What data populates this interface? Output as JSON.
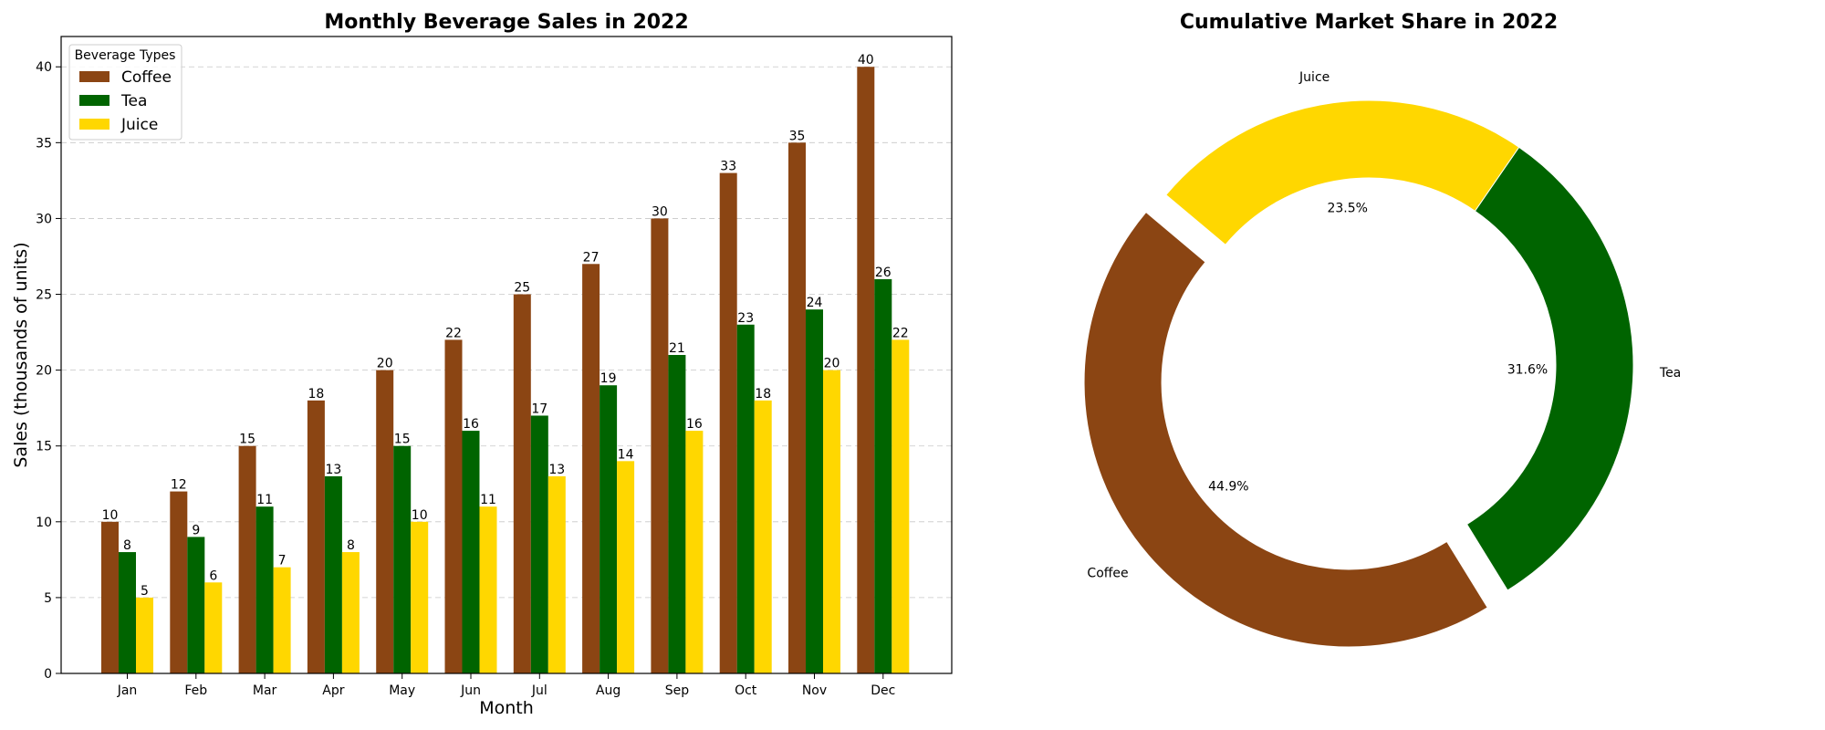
{
  "chart_data": [
    {
      "type": "bar",
      "title": "Monthly Beverage Sales in 2022",
      "xlabel": "Month",
      "ylabel": "Sales (thousands of units)",
      "ylim": [
        0,
        42
      ],
      "yticks": [
        0,
        5,
        10,
        15,
        20,
        25,
        30,
        35,
        40
      ],
      "grid": true,
      "legend": {
        "title": "Beverage Types",
        "placement": "upper-left"
      },
      "categories": [
        "Jan",
        "Feb",
        "Mar",
        "Apr",
        "May",
        "Jun",
        "Jul",
        "Aug",
        "Sep",
        "Oct",
        "Nov",
        "Dec"
      ],
      "series": [
        {
          "name": "Coffee",
          "color": "#8B4513",
          "values": [
            10,
            12,
            15,
            18,
            20,
            22,
            25,
            27,
            30,
            33,
            35,
            40
          ]
        },
        {
          "name": "Tea",
          "color": "#006400",
          "values": [
            8,
            9,
            11,
            13,
            15,
            16,
            17,
            19,
            21,
            23,
            24,
            26
          ]
        },
        {
          "name": "Juice",
          "color": "#FFD700",
          "values": [
            5,
            6,
            7,
            8,
            10,
            11,
            13,
            14,
            16,
            18,
            20,
            22
          ]
        }
      ]
    },
    {
      "type": "pie",
      "style": "donut",
      "title": "Cumulative Market Share in 2022",
      "slices": [
        {
          "label": "Coffee",
          "percent": 44.9,
          "pct_label": "44.9%",
          "color": "#8B4513",
          "exploded": true
        },
        {
          "label": "Tea",
          "percent": 31.6,
          "pct_label": "31.6%",
          "color": "#006400",
          "exploded": false
        },
        {
          "label": "Juice",
          "percent": 23.5,
          "pct_label": "23.5%",
          "color": "#FFD700",
          "exploded": false
        }
      ]
    }
  ]
}
